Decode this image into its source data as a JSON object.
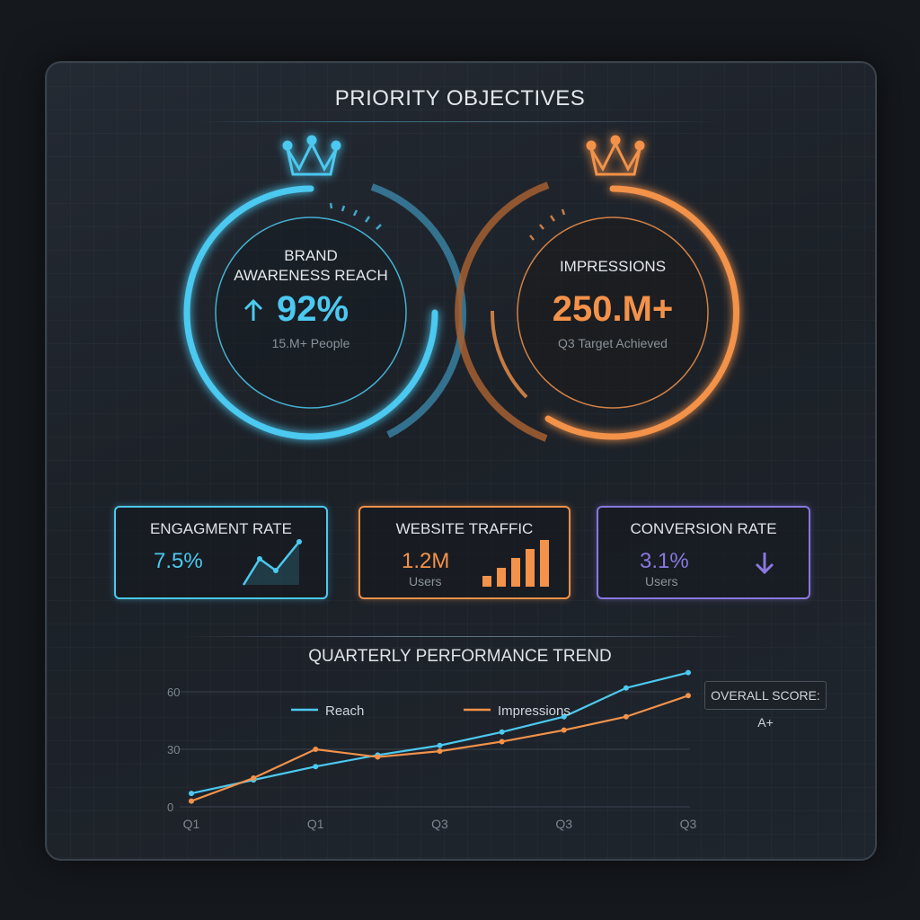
{
  "title": "PRIORITY OBJECTIVES",
  "colors": {
    "cyan": "#4cc9f0",
    "orange": "#f3924a",
    "purple": "#8a78e0",
    "panel": "#1f252d"
  },
  "objectives": [
    {
      "icon": "crown-icon",
      "label_line1": "BRAND",
      "label_line2": "AWARENESS REACH",
      "trend_icon": "arrow-up-icon",
      "value": "92%",
      "sub": "15.M+ People",
      "progress_pct": 92
    },
    {
      "icon": "crown-icon",
      "label": "IMPRESSIONS",
      "value": "250.M+",
      "sub": "Q3 Target Achieved"
    }
  ],
  "kpis": [
    {
      "label": "ENGAGMENT RATE",
      "value": "7.5%",
      "icon": "line-chart-icon"
    },
    {
      "label": "WEBSITE TRAFFIC",
      "value": "1.2M",
      "sub": "Users",
      "icon": "bar-chart-icon"
    },
    {
      "label": "CONVERSION RATE",
      "value": "3.1%",
      "sub": "Users",
      "icon": "arrow-down-icon"
    }
  ],
  "chart_title": "QUARTERLY PERFORMANCE TREND",
  "overall_score": "OVERALL SCORE: A+",
  "chart_data": {
    "type": "line",
    "title": "QUARTERLY PERFORMANCE TREND",
    "x_ticks": [
      "Q1",
      "Q1",
      "Q3",
      "Q3",
      "Q3"
    ],
    "y_ticks": [
      "60",
      "30",
      "0"
    ],
    "ylim": [
      0,
      60
    ],
    "legend_placement": "top",
    "grid": true,
    "series": [
      {
        "name": "Reach",
        "color": "#4cc9f0",
        "values": [
          7,
          14,
          21,
          27,
          32,
          39,
          47,
          62,
          70
        ]
      },
      {
        "name": "Impressions",
        "color": "#f3924a",
        "values": [
          3,
          15,
          30,
          26,
          29,
          34,
          40,
          47,
          58
        ]
      }
    ]
  }
}
